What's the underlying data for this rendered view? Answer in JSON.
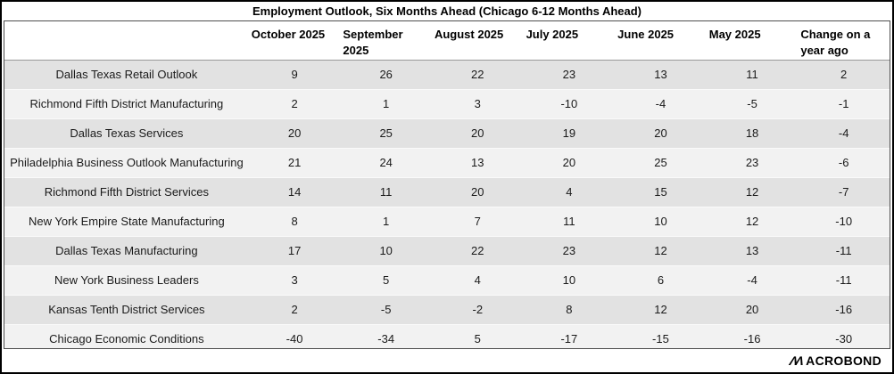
{
  "chart_data": {
    "type": "table",
    "title": "Employment Outlook, Six Months Ahead (Chicago 6-12 Months Ahead)",
    "columns": [
      "October 2025",
      "September 2025",
      "August 2025",
      "July 2025",
      "June 2025",
      "May 2025",
      "Change on a year ago"
    ],
    "rows": [
      {
        "label": "Dallas Texas Retail Outlook",
        "values": [
          9,
          26,
          22,
          23,
          13,
          11,
          2
        ]
      },
      {
        "label": "Richmond Fifth District Manufacturing",
        "values": [
          2,
          1,
          3,
          -10,
          -4,
          -5,
          -1
        ]
      },
      {
        "label": "Dallas Texas Services",
        "values": [
          20,
          25,
          20,
          19,
          20,
          18,
          -4
        ]
      },
      {
        "label": "Philadelphia Business Outlook Manufacturing",
        "values": [
          21,
          24,
          13,
          20,
          25,
          23,
          -6
        ]
      },
      {
        "label": "Richmond Fifth District Services",
        "values": [
          14,
          11,
          20,
          4,
          15,
          12,
          -7
        ]
      },
      {
        "label": "New York Empire State Manufacturing",
        "values": [
          8,
          1,
          7,
          11,
          10,
          12,
          -10
        ]
      },
      {
        "label": "Dallas Texas Manufacturing",
        "values": [
          17,
          10,
          22,
          23,
          12,
          13,
          -11
        ]
      },
      {
        "label": "New York Business Leaders",
        "values": [
          3,
          5,
          4,
          10,
          6,
          -4,
          -11
        ]
      },
      {
        "label": "Kansas Tenth District Services",
        "values": [
          2,
          -5,
          -2,
          8,
          12,
          20,
          -16
        ]
      },
      {
        "label": "Chicago Economic Conditions",
        "values": [
          -40,
          -34,
          5,
          -17,
          -15,
          -16,
          -30
        ]
      }
    ],
    "layout": {
      "row_shading": "alternating",
      "first_row_shade": "dark",
      "gridlines": "none",
      "header_separator": true
    }
  },
  "footer": {
    "logo_mark": "ΛΛ",
    "logo_text": "ACROBOND"
  },
  "colors": {
    "row_odd": "#e2e2e2",
    "row_even": "#f2f2f2",
    "table_border": "#4d4d4d",
    "header_separator": "#999999",
    "frame_border": "#000000",
    "text": "#1a1a1a"
  }
}
